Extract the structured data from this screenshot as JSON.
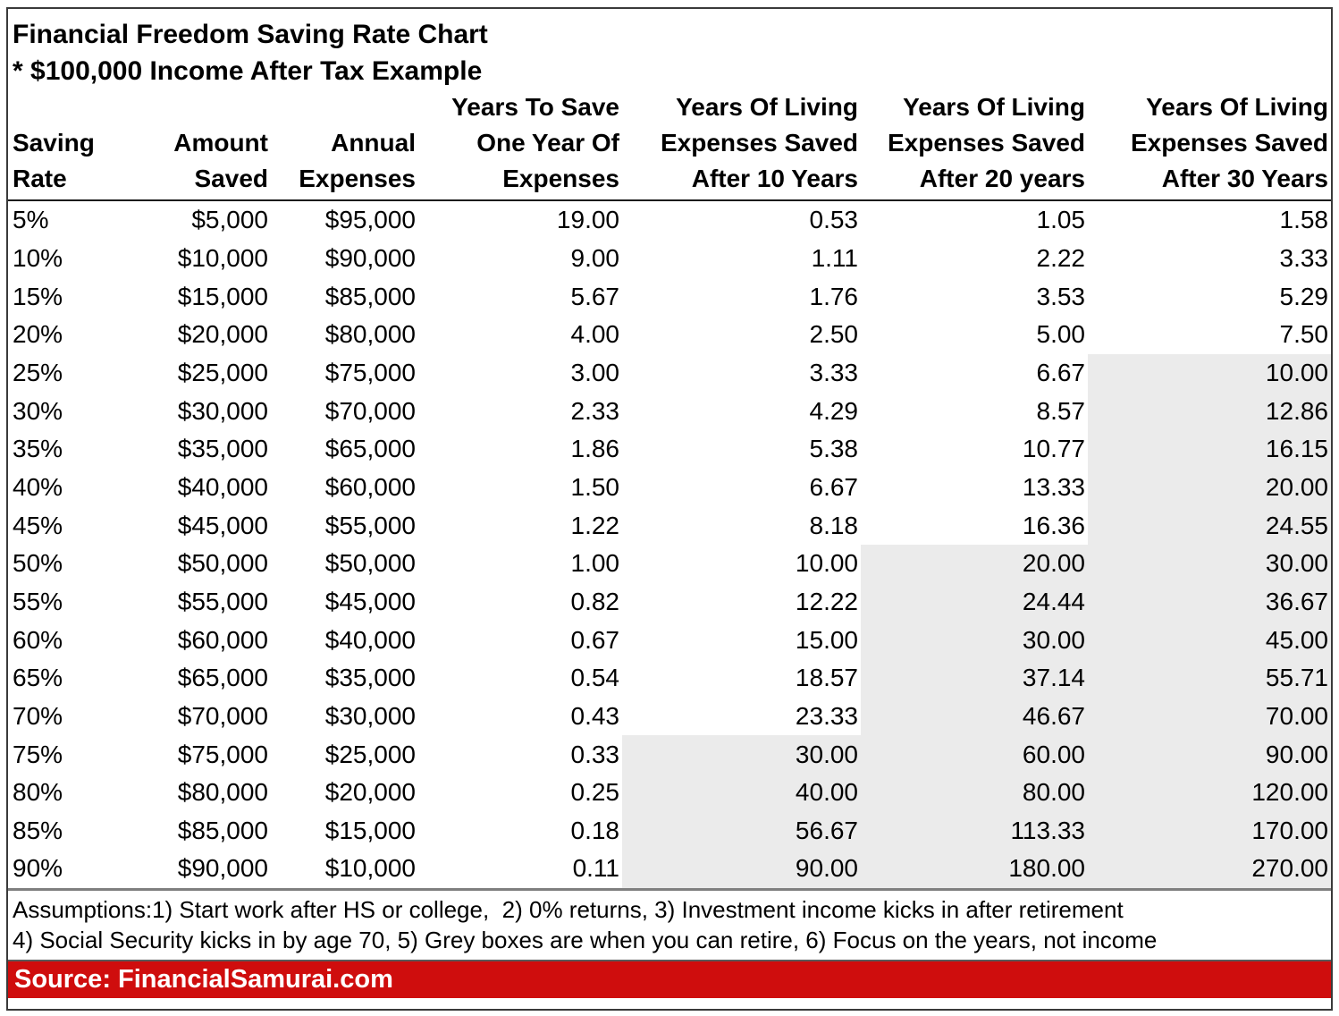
{
  "title": {
    "line1": "Financial Freedom Saving Rate Chart",
    "line2": "* $100,000 Income After Tax Example"
  },
  "table": {
    "headers": [
      "Saving\nRate",
      "Amount\nSaved",
      "Annual\nExpenses",
      "Years To Save\nOne Year Of\nExpenses",
      "Years Of Living\nExpenses Saved\nAfter 10 Years",
      "Years Of Living\nExpenses Saved\nAfter 20 years",
      "Years Of Living\nExpenses Saved\nAfter 30 Years"
    ],
    "rows": [
      [
        "5%",
        "$5,000",
        "$95,000",
        "19.00",
        "0.53",
        "1.05",
        "1.58"
      ],
      [
        "10%",
        "$10,000",
        "$90,000",
        "9.00",
        "1.11",
        "2.22",
        "3.33"
      ],
      [
        "15%",
        "$15,000",
        "$85,000",
        "5.67",
        "1.76",
        "3.53",
        "5.29"
      ],
      [
        "20%",
        "$20,000",
        "$80,000",
        "4.00",
        "2.50",
        "5.00",
        "7.50"
      ],
      [
        "25%",
        "$25,000",
        "$75,000",
        "3.00",
        "3.33",
        "6.67",
        "10.00"
      ],
      [
        "30%",
        "$30,000",
        "$70,000",
        "2.33",
        "4.29",
        "8.57",
        "12.86"
      ],
      [
        "35%",
        "$35,000",
        "$65,000",
        "1.86",
        "5.38",
        "10.77",
        "16.15"
      ],
      [
        "40%",
        "$40,000",
        "$60,000",
        "1.50",
        "6.67",
        "13.33",
        "20.00"
      ],
      [
        "45%",
        "$45,000",
        "$55,000",
        "1.22",
        "8.18",
        "16.36",
        "24.55"
      ],
      [
        "50%",
        "$50,000",
        "$50,000",
        "1.00",
        "10.00",
        "20.00",
        "30.00"
      ],
      [
        "55%",
        "$55,000",
        "$45,000",
        "0.82",
        "12.22",
        "24.44",
        "36.67"
      ],
      [
        "60%",
        "$60,000",
        "$40,000",
        "0.67",
        "15.00",
        "30.00",
        "45.00"
      ],
      [
        "65%",
        "$65,000",
        "$35,000",
        "0.54",
        "18.57",
        "37.14",
        "55.71"
      ],
      [
        "70%",
        "$70,000",
        "$30,000",
        "0.43",
        "23.33",
        "46.67",
        "70.00"
      ],
      [
        "75%",
        "$75,000",
        "$25,000",
        "0.33",
        "30.00",
        "60.00",
        "90.00"
      ],
      [
        "80%",
        "$80,000",
        "$20,000",
        "0.25",
        "40.00",
        "80.00",
        "120.00"
      ],
      [
        "85%",
        "$85,000",
        "$15,000",
        "0.18",
        "56.67",
        "113.33",
        "170.00"
      ],
      [
        "90%",
        "$90,000",
        "$10,000",
        "0.11",
        "90.00",
        "180.00",
        "270.00"
      ]
    ],
    "grey_color": "#ebebeb",
    "grey_start_row_by_column": {
      "4": 14,
      "5": 9,
      "6": 4
    }
  },
  "footnotes": {
    "line1": "Assumptions:1) Start work after HS or college,  2) 0% returns, 3) Investment income kicks in after retirement",
    "line2": "4) Social Security kicks in by age 70, 5) Grey boxes are when you can retire, 6) Focus on the years, not income"
  },
  "source_bar": {
    "label": "Source: FinancialSamurai.com",
    "background": "#cf0d0d",
    "text_color": "#ffffff"
  },
  "chart_data": {
    "type": "table",
    "title": "Financial Freedom Saving Rate Chart",
    "subtitle": "* $100,000 Income After Tax Example",
    "columns": [
      "Saving Rate",
      "Amount Saved",
      "Annual Expenses",
      "Years To Save One Year Of Expenses",
      "Years Of Living Expenses Saved After 10 Years",
      "Years Of Living Expenses Saved After 20 years",
      "Years Of Living Expenses Saved After 30 Years"
    ],
    "saving_rate_pct": [
      5,
      10,
      15,
      20,
      25,
      30,
      35,
      40,
      45,
      50,
      55,
      60,
      65,
      70,
      75,
      80,
      85,
      90
    ],
    "amount_saved_usd": [
      5000,
      10000,
      15000,
      20000,
      25000,
      30000,
      35000,
      40000,
      45000,
      50000,
      55000,
      60000,
      65000,
      70000,
      75000,
      80000,
      85000,
      90000
    ],
    "annual_expenses_usd": [
      95000,
      90000,
      85000,
      80000,
      75000,
      70000,
      65000,
      60000,
      55000,
      50000,
      45000,
      40000,
      35000,
      30000,
      25000,
      20000,
      15000,
      10000
    ],
    "years_to_save_one_year_of_expenses": [
      19.0,
      9.0,
      5.67,
      4.0,
      3.0,
      2.33,
      1.86,
      1.5,
      1.22,
      1.0,
      0.82,
      0.67,
      0.54,
      0.43,
      0.33,
      0.25,
      0.18,
      0.11
    ],
    "years_of_expenses_saved_after_10_years": [
      0.53,
      1.11,
      1.76,
      2.5,
      3.33,
      4.29,
      5.38,
      6.67,
      8.18,
      10.0,
      12.22,
      15.0,
      18.57,
      23.33,
      30.0,
      40.0,
      56.67,
      90.0
    ],
    "years_of_expenses_saved_after_20_years": [
      1.05,
      2.22,
      3.53,
      5.0,
      6.67,
      8.57,
      10.77,
      13.33,
      16.36,
      20.0,
      24.44,
      30.0,
      37.14,
      46.67,
      60.0,
      80.0,
      113.33,
      180.0
    ],
    "years_of_expenses_saved_after_30_years": [
      1.58,
      3.33,
      5.29,
      7.5,
      10.0,
      12.86,
      16.15,
      20.0,
      24.55,
      30.0,
      36.67,
      45.0,
      55.71,
      70.0,
      90.0,
      120.0,
      170.0,
      270.0
    ],
    "grey_box_meaning": "Grey boxes are when you can retire",
    "grey_boxes_first_row_pct": {
      "after_10_years": 75,
      "after_20_years": 50,
      "after_30_years": 25
    }
  }
}
